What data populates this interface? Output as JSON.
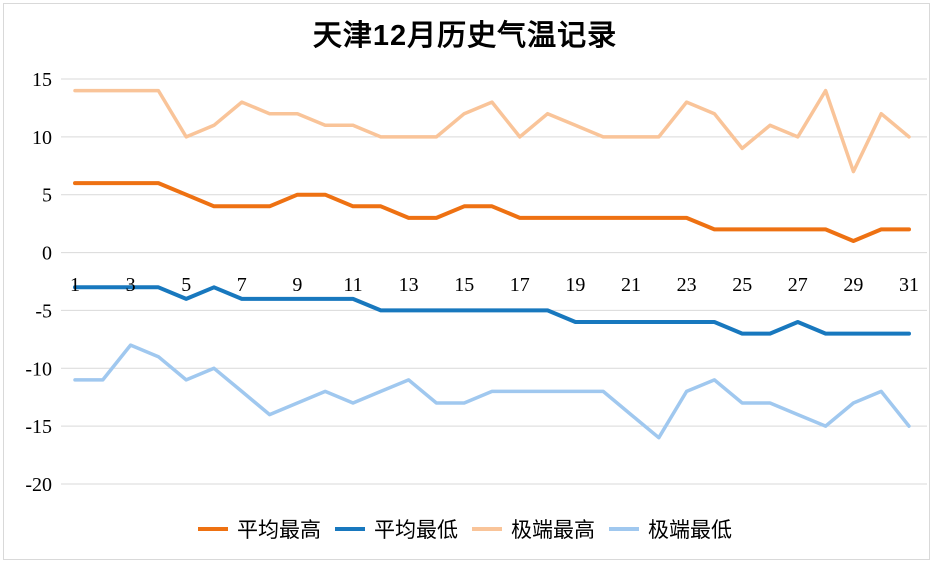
{
  "title": "天津12月历史气温记录",
  "colors": {
    "background": "#FFFFFF",
    "frame_border": "#D9D9D9",
    "gridline": "#D9D9D9",
    "text": "#000000"
  },
  "chart_data": {
    "type": "line",
    "title": "天津12月历史气温记录",
    "x": [
      1,
      2,
      3,
      4,
      5,
      6,
      7,
      8,
      9,
      10,
      11,
      12,
      13,
      14,
      15,
      16,
      17,
      18,
      19,
      20,
      21,
      22,
      23,
      24,
      25,
      26,
      27,
      28,
      29,
      30,
      31
    ],
    "x_tick_labels": [
      "1",
      "3",
      "5",
      "7",
      "9",
      "11",
      "13",
      "15",
      "17",
      "19",
      "21",
      "23",
      "25",
      "27",
      "29",
      "31"
    ],
    "series": [
      {
        "key": "avg-max",
        "name": "平均最高",
        "color": "#EE7112",
        "line_width": 4,
        "values": [
          6,
          6,
          6,
          6,
          5,
          4,
          4,
          4,
          5,
          5,
          4,
          4,
          3,
          3,
          4,
          4,
          3,
          3,
          3,
          3,
          3,
          3,
          3,
          2,
          2,
          2,
          2,
          2,
          1,
          2,
          2
        ]
      },
      {
        "key": "avg-min",
        "name": "平均最低",
        "color": "#1878BE",
        "line_width": 4,
        "values": [
          -3,
          -3,
          -3,
          -3,
          -4,
          -3,
          -4,
          -4,
          -4,
          -4,
          -4,
          -5,
          -5,
          -5,
          -5,
          -5,
          -5,
          -5,
          -6,
          -6,
          -6,
          -6,
          -6,
          -6,
          -7,
          -7,
          -6,
          -7,
          -7,
          -7,
          -7
        ]
      },
      {
        "key": "extreme-max",
        "name": "极端最高",
        "color": "#F9C499",
        "line_width": 3.5,
        "values": [
          14,
          14,
          14,
          14,
          10,
          11,
          13,
          12,
          12,
          11,
          11,
          10,
          10,
          10,
          12,
          13,
          10,
          12,
          11,
          10,
          10,
          10,
          13,
          12,
          9,
          11,
          10,
          14,
          7,
          12,
          10
        ]
      },
      {
        "key": "extreme-min",
        "name": "极端最低",
        "color": "#A0C8EF",
        "line_width": 3.5,
        "values": [
          -11,
          -11,
          -8,
          -9,
          -11,
          -10,
          -12,
          -14,
          -13,
          -12,
          -13,
          -12,
          -11,
          -13,
          -13,
          -12,
          -12,
          -12,
          -12,
          -12,
          -14,
          -16,
          -12,
          -11,
          -13,
          -13,
          -14,
          -15,
          -13,
          -12,
          -15
        ]
      }
    ],
    "ylim": [
      -20,
      15
    ],
    "yticks": [
      15,
      10,
      5,
      0,
      -5,
      -10,
      -15,
      -20
    ],
    "xlabel": "",
    "ylabel": "",
    "grid": "horizontal",
    "legend_position": "bottom"
  }
}
